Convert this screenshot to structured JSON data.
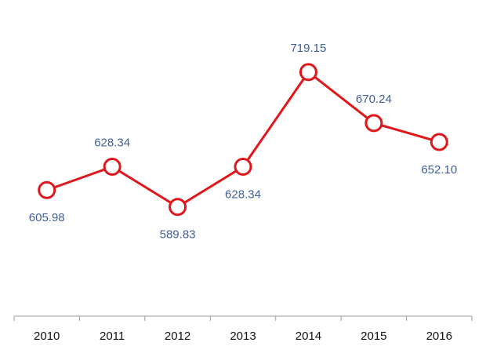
{
  "chart_data": {
    "type": "line",
    "categories": [
      "2010",
      "2011",
      "2012",
      "2013",
      "2014",
      "2015",
      "2016"
    ],
    "series": [
      {
        "values": [
          605.98,
          628.34,
          589.83,
          628.34,
          719.15,
          670.24,
          652.1
        ],
        "value_labels": [
          "605.98",
          "628.34",
          "589.83",
          "628.34",
          "719.15",
          "670.24",
          "652.10"
        ],
        "label_positions": [
          "below",
          "above",
          "below",
          "below",
          "above",
          "above",
          "below"
        ],
        "color": "#e0161b"
      }
    ],
    "title": "",
    "xlabel": "",
    "ylabel": "",
    "ylim": [
      485,
      780
    ],
    "grid": false,
    "legend": "none",
    "colors": {
      "line": "#e0161b",
      "marker_fill": "#ffffff",
      "data_label": "#3f5f9a",
      "axis": "#9a9a9a",
      "tick_label": "#111111"
    }
  }
}
